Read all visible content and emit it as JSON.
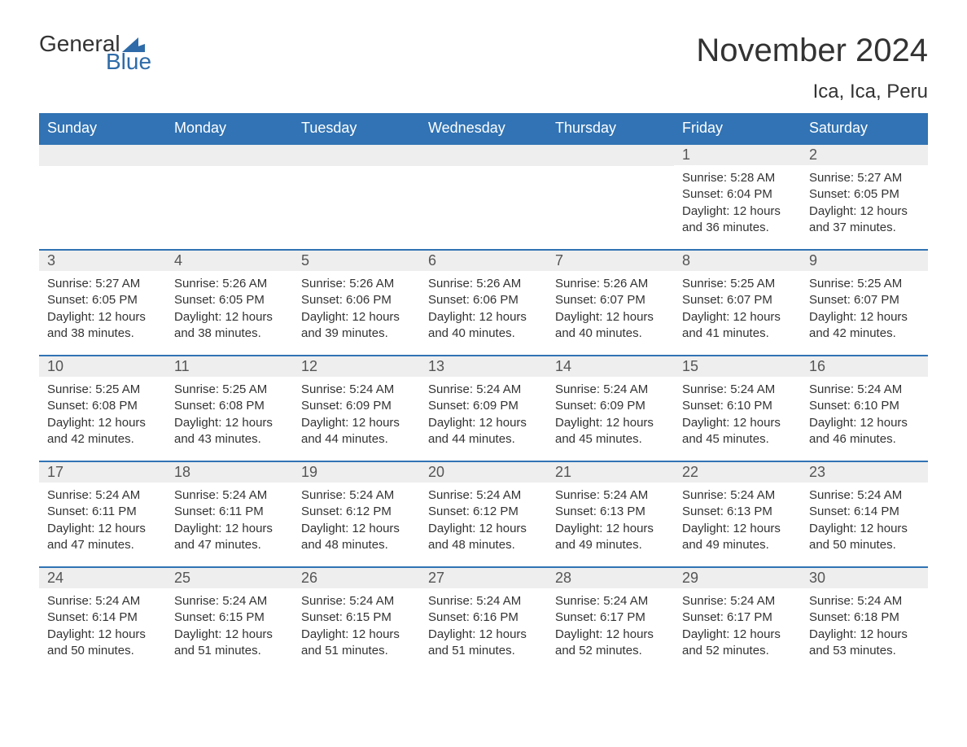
{
  "logo": {
    "word1": "General",
    "word2": "Blue",
    "flag_color": "#2e6ba8"
  },
  "title": "November 2024",
  "location": "Ica, Ica, Peru",
  "colors": {
    "header_bg": "#3173b4",
    "header_text": "#ffffff",
    "daynum_bg": "#eeeeee",
    "daynum_text": "#555555",
    "body_text": "#333333",
    "rule": "#3173b4",
    "page_bg": "#ffffff",
    "logo_blue": "#2e6ba8"
  },
  "typography": {
    "title_fontsize": 40,
    "location_fontsize": 24,
    "weekday_fontsize": 18,
    "daynum_fontsize": 18,
    "body_fontsize": 15
  },
  "layout": {
    "columns": 7,
    "rows": 5,
    "cell_min_height": 128
  },
  "weekdays": [
    "Sunday",
    "Monday",
    "Tuesday",
    "Wednesday",
    "Thursday",
    "Friday",
    "Saturday"
  ],
  "weeks": [
    [
      {
        "empty": true
      },
      {
        "empty": true
      },
      {
        "empty": true
      },
      {
        "empty": true
      },
      {
        "empty": true
      },
      {
        "day": "1",
        "sunrise": "Sunrise: 5:28 AM",
        "sunset": "Sunset: 6:04 PM",
        "daylight": "Daylight: 12 hours and 36 minutes."
      },
      {
        "day": "2",
        "sunrise": "Sunrise: 5:27 AM",
        "sunset": "Sunset: 6:05 PM",
        "daylight": "Daylight: 12 hours and 37 minutes."
      }
    ],
    [
      {
        "day": "3",
        "sunrise": "Sunrise: 5:27 AM",
        "sunset": "Sunset: 6:05 PM",
        "daylight": "Daylight: 12 hours and 38 minutes."
      },
      {
        "day": "4",
        "sunrise": "Sunrise: 5:26 AM",
        "sunset": "Sunset: 6:05 PM",
        "daylight": "Daylight: 12 hours and 38 minutes."
      },
      {
        "day": "5",
        "sunrise": "Sunrise: 5:26 AM",
        "sunset": "Sunset: 6:06 PM",
        "daylight": "Daylight: 12 hours and 39 minutes."
      },
      {
        "day": "6",
        "sunrise": "Sunrise: 5:26 AM",
        "sunset": "Sunset: 6:06 PM",
        "daylight": "Daylight: 12 hours and 40 minutes."
      },
      {
        "day": "7",
        "sunrise": "Sunrise: 5:26 AM",
        "sunset": "Sunset: 6:07 PM",
        "daylight": "Daylight: 12 hours and 40 minutes."
      },
      {
        "day": "8",
        "sunrise": "Sunrise: 5:25 AM",
        "sunset": "Sunset: 6:07 PM",
        "daylight": "Daylight: 12 hours and 41 minutes."
      },
      {
        "day": "9",
        "sunrise": "Sunrise: 5:25 AM",
        "sunset": "Sunset: 6:07 PM",
        "daylight": "Daylight: 12 hours and 42 minutes."
      }
    ],
    [
      {
        "day": "10",
        "sunrise": "Sunrise: 5:25 AM",
        "sunset": "Sunset: 6:08 PM",
        "daylight": "Daylight: 12 hours and 42 minutes."
      },
      {
        "day": "11",
        "sunrise": "Sunrise: 5:25 AM",
        "sunset": "Sunset: 6:08 PM",
        "daylight": "Daylight: 12 hours and 43 minutes."
      },
      {
        "day": "12",
        "sunrise": "Sunrise: 5:24 AM",
        "sunset": "Sunset: 6:09 PM",
        "daylight": "Daylight: 12 hours and 44 minutes."
      },
      {
        "day": "13",
        "sunrise": "Sunrise: 5:24 AM",
        "sunset": "Sunset: 6:09 PM",
        "daylight": "Daylight: 12 hours and 44 minutes."
      },
      {
        "day": "14",
        "sunrise": "Sunrise: 5:24 AM",
        "sunset": "Sunset: 6:09 PM",
        "daylight": "Daylight: 12 hours and 45 minutes."
      },
      {
        "day": "15",
        "sunrise": "Sunrise: 5:24 AM",
        "sunset": "Sunset: 6:10 PM",
        "daylight": "Daylight: 12 hours and 45 minutes."
      },
      {
        "day": "16",
        "sunrise": "Sunrise: 5:24 AM",
        "sunset": "Sunset: 6:10 PM",
        "daylight": "Daylight: 12 hours and 46 minutes."
      }
    ],
    [
      {
        "day": "17",
        "sunrise": "Sunrise: 5:24 AM",
        "sunset": "Sunset: 6:11 PM",
        "daylight": "Daylight: 12 hours and 47 minutes."
      },
      {
        "day": "18",
        "sunrise": "Sunrise: 5:24 AM",
        "sunset": "Sunset: 6:11 PM",
        "daylight": "Daylight: 12 hours and 47 minutes."
      },
      {
        "day": "19",
        "sunrise": "Sunrise: 5:24 AM",
        "sunset": "Sunset: 6:12 PM",
        "daylight": "Daylight: 12 hours and 48 minutes."
      },
      {
        "day": "20",
        "sunrise": "Sunrise: 5:24 AM",
        "sunset": "Sunset: 6:12 PM",
        "daylight": "Daylight: 12 hours and 48 minutes."
      },
      {
        "day": "21",
        "sunrise": "Sunrise: 5:24 AM",
        "sunset": "Sunset: 6:13 PM",
        "daylight": "Daylight: 12 hours and 49 minutes."
      },
      {
        "day": "22",
        "sunrise": "Sunrise: 5:24 AM",
        "sunset": "Sunset: 6:13 PM",
        "daylight": "Daylight: 12 hours and 49 minutes."
      },
      {
        "day": "23",
        "sunrise": "Sunrise: 5:24 AM",
        "sunset": "Sunset: 6:14 PM",
        "daylight": "Daylight: 12 hours and 50 minutes."
      }
    ],
    [
      {
        "day": "24",
        "sunrise": "Sunrise: 5:24 AM",
        "sunset": "Sunset: 6:14 PM",
        "daylight": "Daylight: 12 hours and 50 minutes."
      },
      {
        "day": "25",
        "sunrise": "Sunrise: 5:24 AM",
        "sunset": "Sunset: 6:15 PM",
        "daylight": "Daylight: 12 hours and 51 minutes."
      },
      {
        "day": "26",
        "sunrise": "Sunrise: 5:24 AM",
        "sunset": "Sunset: 6:15 PM",
        "daylight": "Daylight: 12 hours and 51 minutes."
      },
      {
        "day": "27",
        "sunrise": "Sunrise: 5:24 AM",
        "sunset": "Sunset: 6:16 PM",
        "daylight": "Daylight: 12 hours and 51 minutes."
      },
      {
        "day": "28",
        "sunrise": "Sunrise: 5:24 AM",
        "sunset": "Sunset: 6:17 PM",
        "daylight": "Daylight: 12 hours and 52 minutes."
      },
      {
        "day": "29",
        "sunrise": "Sunrise: 5:24 AM",
        "sunset": "Sunset: 6:17 PM",
        "daylight": "Daylight: 12 hours and 52 minutes."
      },
      {
        "day": "30",
        "sunrise": "Sunrise: 5:24 AM",
        "sunset": "Sunset: 6:18 PM",
        "daylight": "Daylight: 12 hours and 53 minutes."
      }
    ]
  ]
}
